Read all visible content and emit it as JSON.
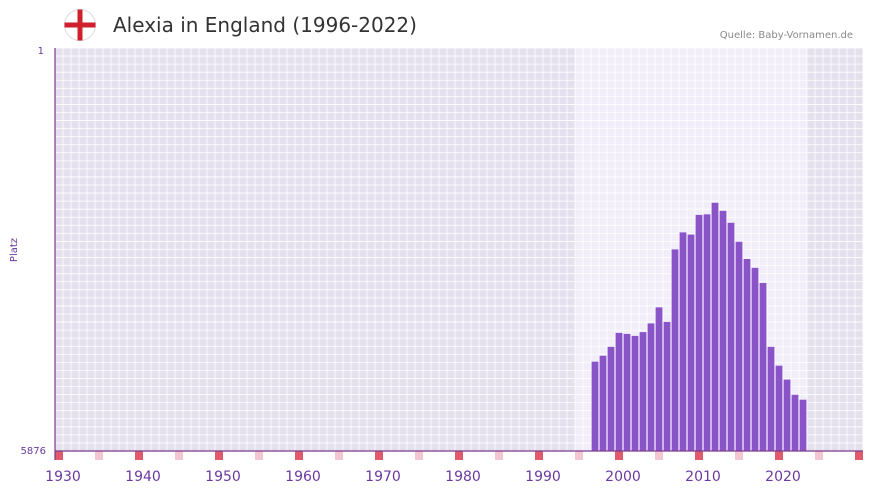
{
  "header": {
    "title": "Alexia in England (1996-2022)",
    "source": "Quelle: Baby-Vornamen.de",
    "flag_icon": "england-flag-icon"
  },
  "colors": {
    "bar": "#8a54c8",
    "axis": "#7a3a8a",
    "plot_bg": "#e4e0ed",
    "highlight_bg": "#f1eefa",
    "grid": "#ffffff",
    "tick_label": "#6a3aa0",
    "marker_strong": "#e05a6e",
    "marker_light": "#f5c6d0",
    "flag_red": "#d0202e"
  },
  "chart_data": {
    "type": "bar",
    "title": "Alexia in England (1996-2022)",
    "ylabel": "Platz",
    "y_axis": {
      "inverted": true,
      "range": [
        1,
        5876
      ],
      "ticks": [
        "1",
        "5876"
      ]
    },
    "x_axis": {
      "range": [
        1929,
        2029
      ],
      "tick_years": [
        1930,
        1940,
        1950,
        1960,
        1970,
        1980,
        1990,
        2000,
        2010,
        2020
      ],
      "tick_labels": [
        "1930",
        "1940",
        "1950",
        "1960",
        "1970",
        "1980",
        "1990",
        "2000",
        "2010",
        "2020"
      ]
    },
    "highlight_range": [
      1994,
      2022
    ],
    "years": [
      1996,
      1997,
      1998,
      1999,
      2000,
      2001,
      2002,
      2003,
      2004,
      2005,
      2006,
      2007,
      2008,
      2009,
      2010,
      2011,
      2012,
      2013,
      2014,
      2015,
      2016,
      2017,
      2018,
      2019,
      2020,
      2021,
      2022
    ],
    "ranks": [
      4574,
      4487,
      4357,
      4154,
      4169,
      4198,
      4143,
      4016,
      3782,
      3994,
      2937,
      2689,
      2721,
      2434,
      2426,
      2257,
      2375,
      2549,
      2825,
      3077,
      3206,
      3426,
      4357,
      4632,
      4835,
      5056,
      5128
    ],
    "markers_strong": [
      1929,
      1939,
      1949,
      1959,
      1969,
      1979,
      1989,
      1999,
      2009,
      2019,
      2029
    ],
    "markers_light": [
      1934,
      1944,
      1954,
      1964,
      1974,
      1984,
      1994,
      2004,
      2014,
      2024
    ]
  }
}
